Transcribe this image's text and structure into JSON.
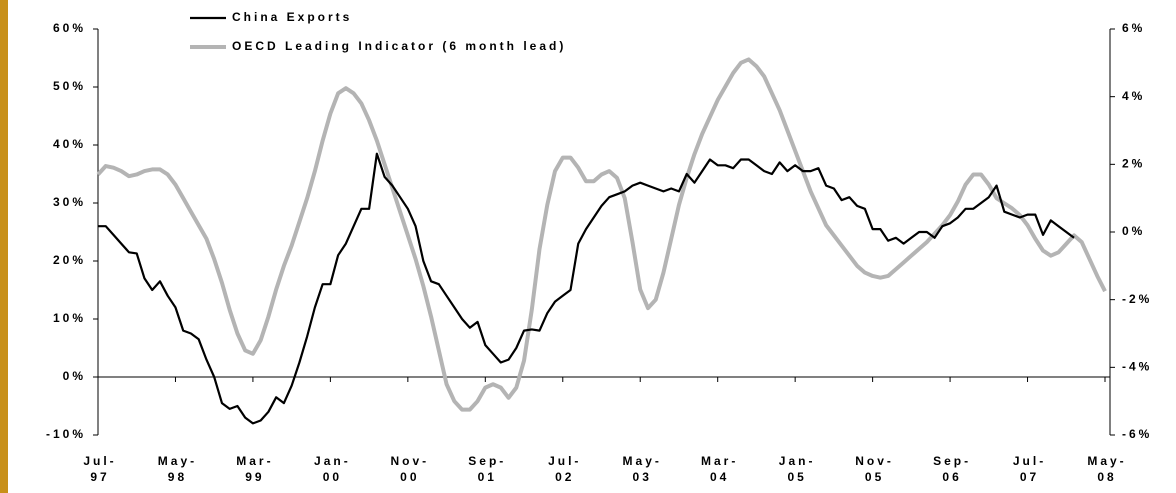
{
  "chart_data": {
    "type": "line",
    "categories": [
      "Jul-97",
      null,
      null,
      null,
      null,
      null,
      null,
      null,
      null,
      null,
      "May-98",
      null,
      null,
      null,
      null,
      null,
      null,
      null,
      null,
      null,
      "Mar-99",
      null,
      null,
      null,
      null,
      null,
      null,
      null,
      null,
      null,
      "Jan-00",
      null,
      null,
      null,
      null,
      null,
      null,
      null,
      null,
      null,
      "Nov-00",
      null,
      null,
      null,
      null,
      null,
      null,
      null,
      null,
      null,
      "Sep-01",
      null,
      null,
      null,
      null,
      null,
      null,
      null,
      null,
      null,
      "Jul-02",
      null,
      null,
      null,
      null,
      null,
      null,
      null,
      null,
      null,
      "May-03",
      null,
      null,
      null,
      null,
      null,
      null,
      null,
      null,
      null,
      "Mar-04",
      null,
      null,
      null,
      null,
      null,
      null,
      null,
      null,
      null,
      "Jan-05",
      null,
      null,
      null,
      null,
      null,
      null,
      null,
      null,
      null,
      "Nov-05",
      null,
      null,
      null,
      null,
      null,
      null,
      null,
      null,
      null,
      "Sep-06",
      null,
      null,
      null,
      null,
      null,
      null,
      null,
      null,
      null,
      "Jul-07",
      null,
      null,
      null,
      null,
      null,
      null,
      null,
      null,
      null,
      "May-08"
    ],
    "series": [
      {
        "name": "China Exports",
        "color": "#000000",
        "axis": "y",
        "values": [
          26,
          26,
          24.5,
          23,
          21.5,
          21.3,
          17,
          15,
          16.5,
          14,
          12,
          8,
          7.5,
          6.5,
          3,
          0,
          -4.5,
          -5.5,
          -5,
          -7,
          -8,
          -7.5,
          -6,
          -3.5,
          -4.5,
          -1.5,
          2.5,
          7,
          12,
          16,
          16,
          21,
          23,
          26,
          29,
          29,
          38.5,
          34.5,
          33,
          31,
          29,
          26,
          20,
          16.5,
          16,
          14,
          12,
          10,
          8.5,
          9.5,
          5.5,
          4,
          2.5,
          3,
          5,
          8,
          8.2,
          8,
          11,
          13,
          14,
          15,
          23,
          25.5,
          27.5,
          29.5,
          31,
          31.5,
          32,
          33,
          33.5,
          33,
          32.5,
          32,
          32.5,
          32,
          35,
          33.5,
          35.5,
          37.5,
          36.5,
          36.5,
          36,
          37.5,
          37.5,
          36.5,
          35.5,
          35,
          37,
          35.5,
          36.5,
          35.5,
          35.5,
          36,
          33,
          32.5,
          30.5,
          31,
          29.5,
          29,
          25.5,
          25.5,
          23.5,
          24,
          23,
          24,
          25,
          25,
          24,
          26,
          26.5,
          27.5,
          29,
          29,
          30,
          31,
          33,
          28.5,
          28,
          27.5,
          28,
          28,
          24.5,
          27,
          26,
          25,
          24,
          null,
          null,
          null,
          null
        ]
      },
      {
        "name": "OECD Leading Indicator (6 month lead)",
        "color": "#b4b4b4",
        "axis": "y2",
        "values": [
          1.7,
          1.95,
          1.9,
          1.8,
          1.65,
          1.7,
          1.8,
          1.85,
          1.85,
          1.7,
          1.4,
          1.0,
          0.6,
          0.2,
          -0.2,
          -0.8,
          -1.5,
          -2.3,
          -3.0,
          -3.5,
          -3.6,
          -3.2,
          -2.5,
          -1.7,
          -1.0,
          -0.4,
          0.3,
          1.0,
          1.8,
          2.7,
          3.5,
          4.1,
          4.25,
          4.1,
          3.8,
          3.3,
          2.7,
          2.0,
          1.3,
          0.6,
          -0.1,
          -0.8,
          -1.6,
          -2.5,
          -3.5,
          -4.5,
          -5.0,
          -5.25,
          -5.25,
          -5.0,
          -4.6,
          -4.5,
          -4.6,
          -4.9,
          -4.6,
          -3.8,
          -2.3,
          -0.5,
          0.8,
          1.8,
          2.2,
          2.2,
          1.9,
          1.5,
          1.5,
          1.7,
          1.8,
          1.6,
          1.0,
          -0.3,
          -1.7,
          -2.25,
          -2.0,
          -1.2,
          -0.2,
          0.8,
          1.6,
          2.3,
          2.9,
          3.4,
          3.9,
          4.3,
          4.7,
          5.0,
          5.1,
          4.9,
          4.6,
          4.1,
          3.6,
          3.0,
          2.4,
          1.8,
          1.2,
          0.7,
          0.2,
          -0.1,
          -0.4,
          -0.7,
          -1.0,
          -1.2,
          -1.3,
          -1.35,
          -1.3,
          -1.1,
          -0.9,
          -0.7,
          -0.5,
          -0.3,
          -0.05,
          0.2,
          0.5,
          0.9,
          1.4,
          1.7,
          1.7,
          1.4,
          1.0,
          0.85,
          0.7,
          0.5,
          0.2,
          -0.2,
          -0.55,
          -0.7,
          -0.6,
          -0.35,
          -0.1,
          -0.3,
          -0.8,
          -1.3,
          -1.75
        ]
      }
    ],
    "ylim": [
      -10,
      60
    ],
    "yticks": [
      {
        "value": -10,
        "label": "-10%"
      },
      {
        "value": 0,
        "label": "0%"
      },
      {
        "value": 10,
        "label": "10%"
      },
      {
        "value": 20,
        "label": "20%"
      },
      {
        "value": 30,
        "label": "30%"
      },
      {
        "value": 40,
        "label": "40%"
      },
      {
        "value": 50,
        "label": "50%"
      },
      {
        "value": 60,
        "label": "60%"
      }
    ],
    "y2lim": [
      -6,
      6
    ],
    "y2ticks": [
      {
        "value": -6,
        "label": "-6%"
      },
      {
        "value": -4,
        "label": "-4%"
      },
      {
        "value": -2,
        "label": "-2%"
      },
      {
        "value": 0,
        "label": "0%"
      },
      {
        "value": 2,
        "label": "2%"
      },
      {
        "value": 4,
        "label": "4%"
      },
      {
        "value": 6,
        "label": "6%"
      }
    ],
    "legend": "top-left",
    "grid": false
  }
}
